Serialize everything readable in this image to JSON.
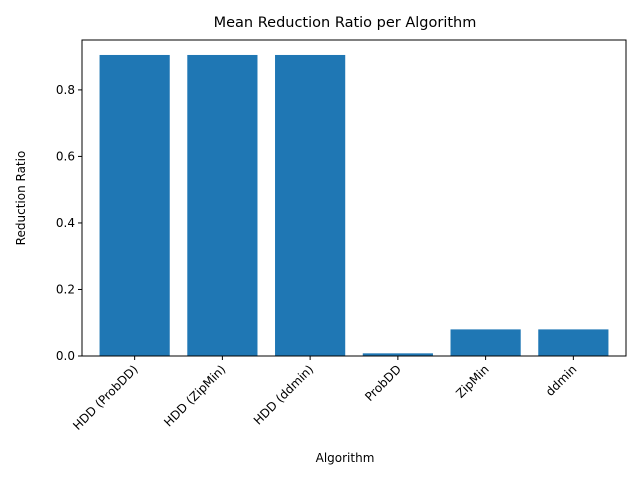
{
  "chart_data": {
    "type": "bar",
    "title": "Mean Reduction Ratio per Algorithm",
    "xlabel": "Algorithm",
    "ylabel": "Reduction Ratio",
    "categories": [
      "HDD (ProbDD)",
      "HDD (ZipMin)",
      "HDD (ddmin)",
      "ProbDD",
      "ZipMin",
      "ddmin"
    ],
    "values": [
      0.905,
      0.905,
      0.905,
      0.008,
      0.08,
      0.08
    ],
    "ylim": [
      0,
      0.95
    ],
    "yticks": [
      0.0,
      0.2,
      0.4,
      0.6,
      0.8
    ],
    "ytick_labels": [
      "0.0",
      "0.2",
      "0.4",
      "0.6",
      "0.8"
    ],
    "grid": false,
    "legend": "none",
    "bar_color": "#1f77b4"
  }
}
